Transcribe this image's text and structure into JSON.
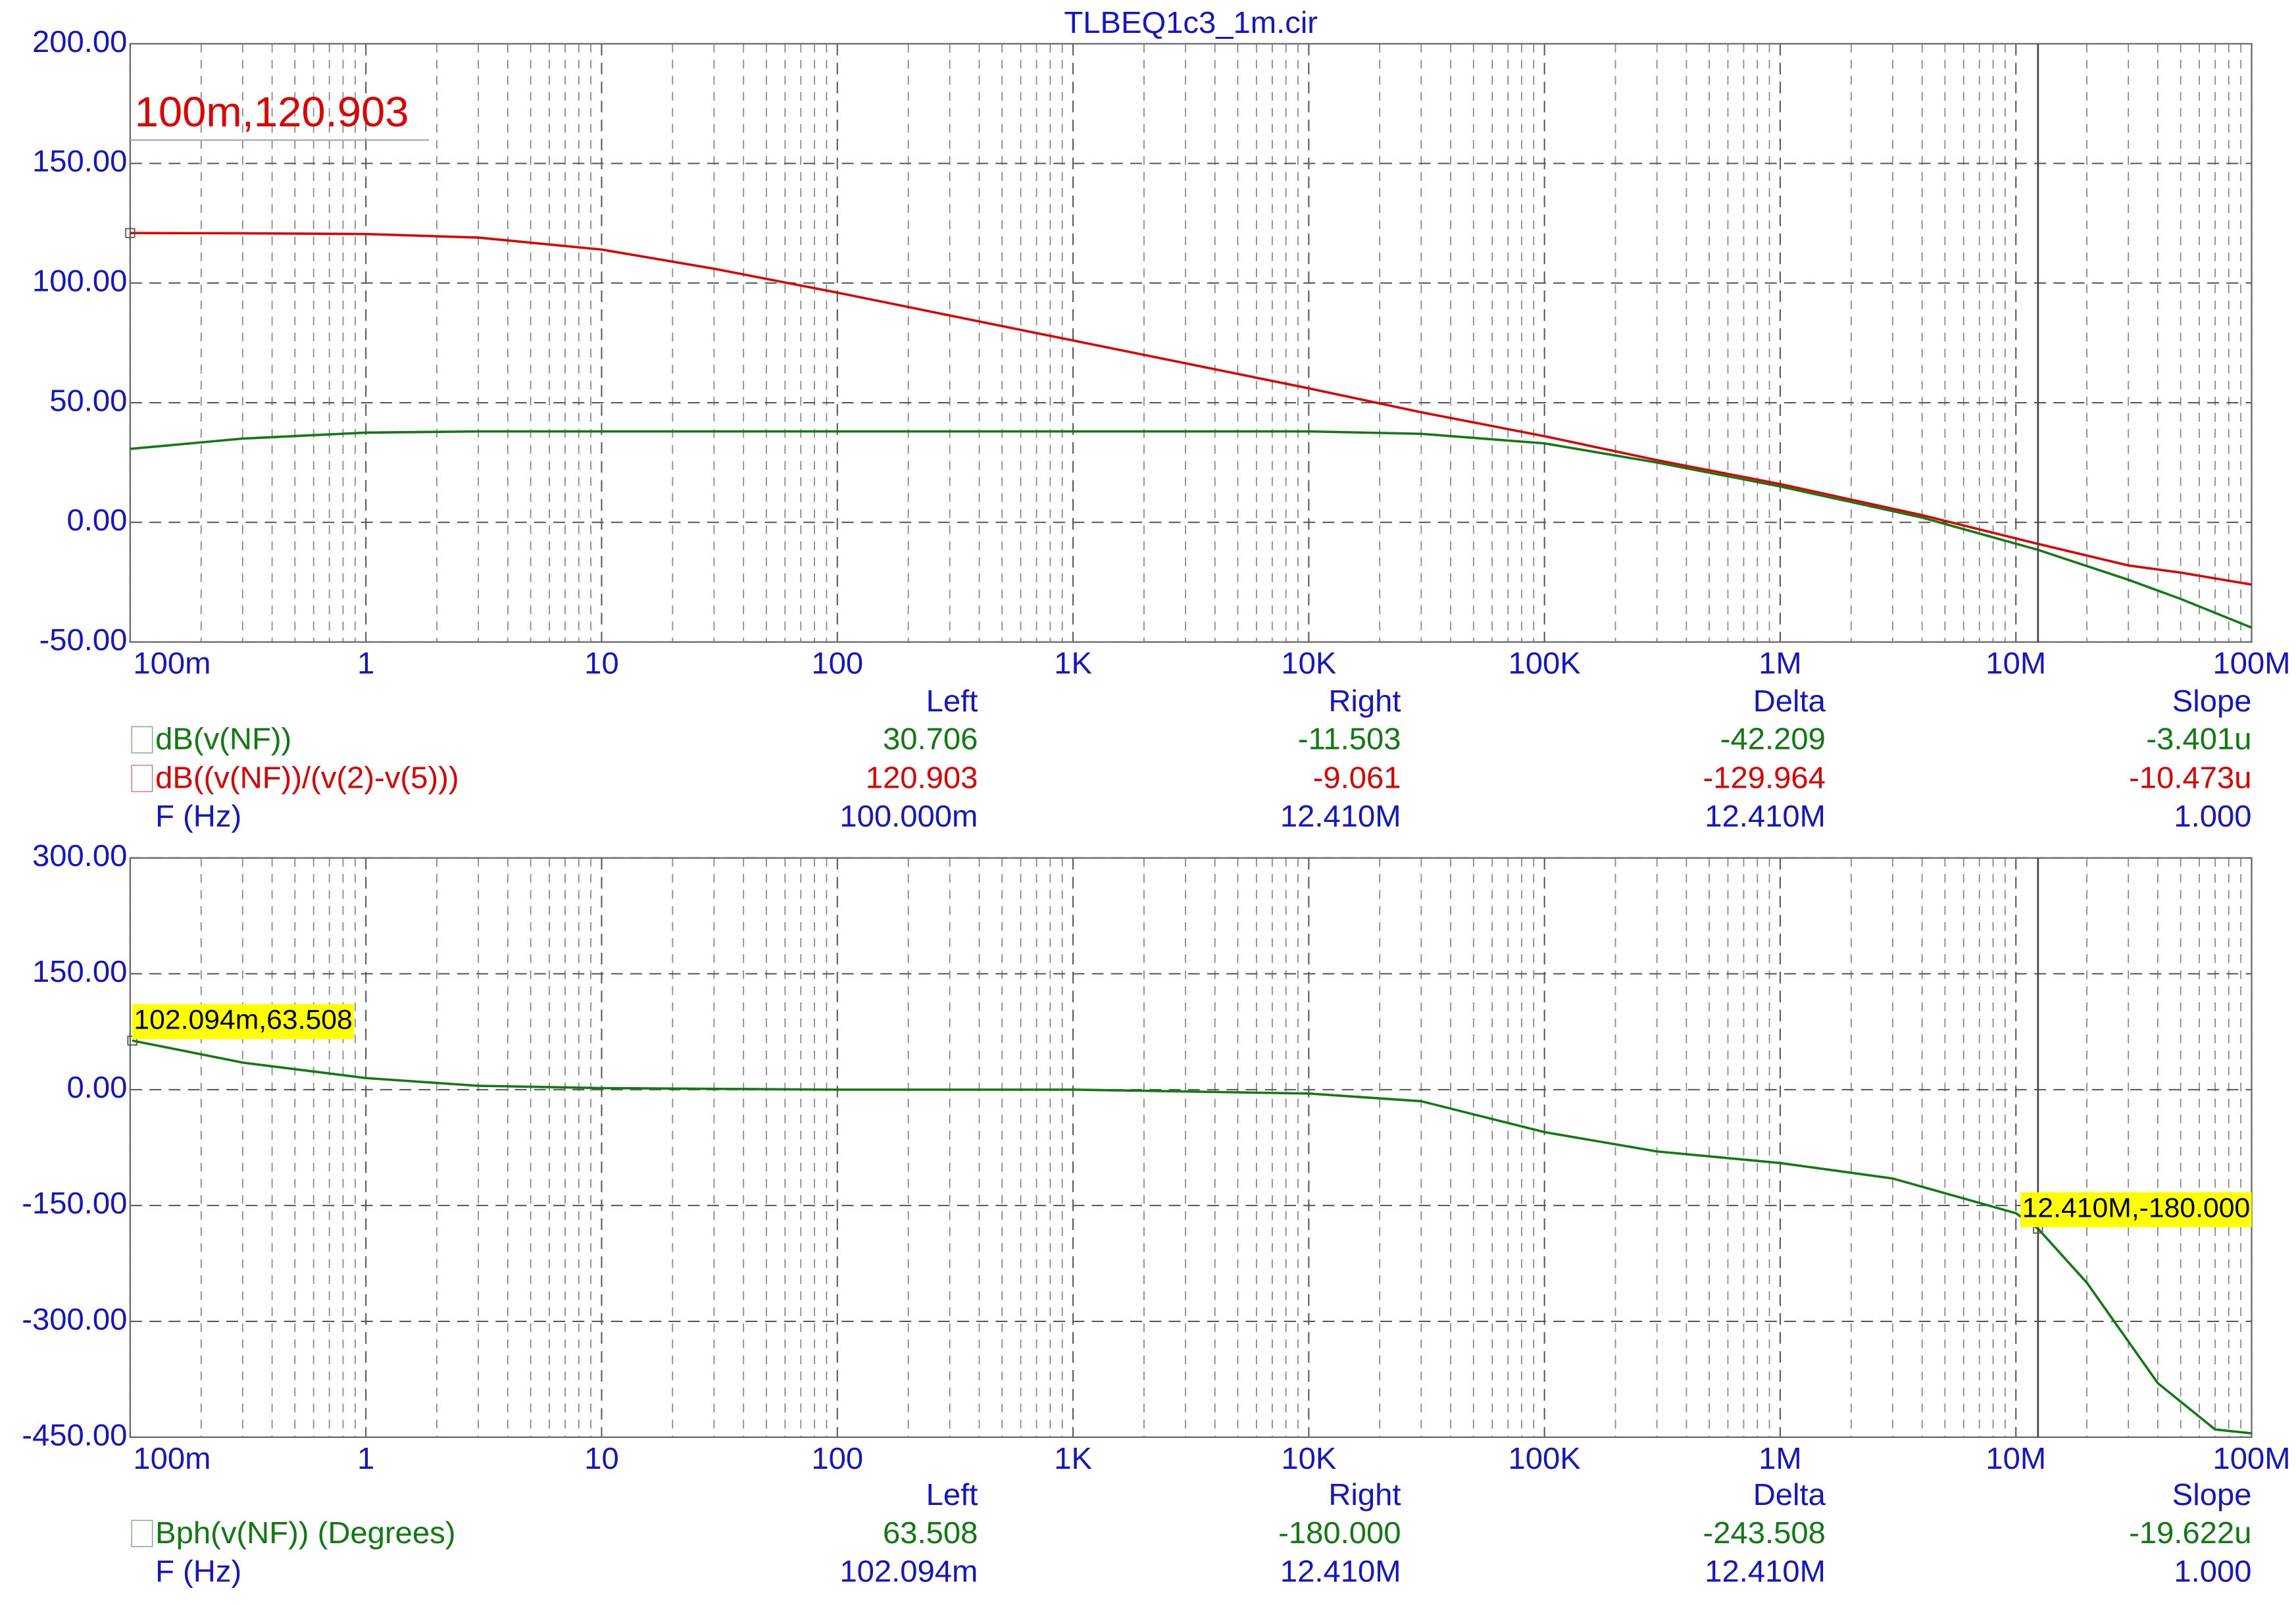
{
  "chart_data": [
    {
      "type": "line",
      "title": "TLBEQ1c3_1m.cir",
      "xscale": "log",
      "grid": true,
      "xlim": [
        0.1,
        100000000
      ],
      "xticks": [
        {
          "value": 0.1,
          "label": "100m"
        },
        1,
        10,
        100,
        {
          "value": 1000,
          "label": "1K"
        },
        {
          "value": 10000,
          "label": "10K"
        },
        {
          "value": 100000,
          "label": "100K"
        },
        {
          "value": 1000000,
          "label": "1M"
        },
        {
          "value": 10000000,
          "label": "10M"
        },
        {
          "value": 100000000,
          "label": "100M"
        }
      ],
      "ylim": [
        -50,
        200
      ],
      "yticks": [
        {
          "value": 200,
          "label": "200.00"
        },
        {
          "value": 150,
          "label": "150.00"
        },
        {
          "value": 100,
          "label": "100.00"
        },
        {
          "value": 50,
          "label": "50.00"
        },
        {
          "value": 0,
          "label": "0.00"
        },
        {
          "value": -50,
          "label": "-50.00"
        }
      ],
      "x": [
        0.1,
        0.3,
        1,
        3,
        10,
        30,
        100,
        1000,
        10000,
        30000,
        100000,
        300000,
        1000000,
        4000000,
        12410000,
        30000000,
        50000000,
        100000000
      ],
      "series": [
        {
          "name": "dB(v(NF))",
          "color": "#0f7a0f",
          "values": [
            30.7,
            35,
            37.5,
            38,
            38,
            38,
            38,
            38,
            38,
            37,
            33,
            25,
            15,
            2,
            -11.5,
            -24,
            -32,
            -44
          ],
          "cursor_values": [
            "30.706",
            "-11.503",
            "-42.209",
            "-3.401u"
          ]
        },
        {
          "name": "dB((v(NF))/(v(2)-v(5)))",
          "color": "#e00000",
          "values": [
            120.9,
            120.8,
            120.5,
            119,
            114,
            106,
            96,
            76,
            56,
            46,
            36,
            26,
            16,
            3,
            -9,
            -18,
            -21,
            -26
          ],
          "cursor_values": [
            "120.903",
            "-9.061",
            "-129.964",
            "-10.473u"
          ]
        }
      ],
      "cursor_x": 12410000,
      "annotations": [
        {
          "x": 0.1,
          "y": 120.903,
          "label": "100m,120.903",
          "color": "#e00000"
        }
      ],
      "cursor_columns": [
        "Left",
        "Right",
        "Delta",
        "Slope"
      ],
      "x_label": "F (Hz)",
      "x_cursor_values": [
        "100.000m",
        "12.410M",
        "12.410M",
        "1.000"
      ]
    },
    {
      "type": "line",
      "xscale": "log",
      "grid": true,
      "xlim": [
        0.1,
        100000000
      ],
      "xticks": [
        {
          "value": 0.1,
          "label": "100m"
        },
        1,
        10,
        100,
        {
          "value": 1000,
          "label": "1K"
        },
        {
          "value": 10000,
          "label": "10K"
        },
        {
          "value": 100000,
          "label": "100K"
        },
        {
          "value": 1000000,
          "label": "1M"
        },
        {
          "value": 10000000,
          "label": "10M"
        },
        {
          "value": 100000000,
          "label": "100M"
        }
      ],
      "ylim": [
        -450,
        300
      ],
      "yticks": [
        {
          "value": 300,
          "label": "300.00"
        },
        {
          "value": 150,
          "label": "150.00"
        },
        {
          "value": 0,
          "label": "0.00"
        },
        {
          "value": -150,
          "label": "-150.00"
        },
        {
          "value": -300,
          "label": "-300.00"
        },
        {
          "value": -450,
          "label": "-450.00"
        }
      ],
      "x": [
        0.102094,
        0.3,
        1,
        3,
        10,
        100,
        1000,
        10000,
        30000,
        100000,
        300000,
        1000000,
        3000000,
        10000000,
        12410000,
        20000000,
        40000000,
        70000000,
        100000000
      ],
      "series": [
        {
          "name": "Bph(v(NF)) (Degrees)",
          "color": "#0f7a0f",
          "values": [
            63.508,
            35,
            15,
            5,
            2,
            0,
            0,
            -5,
            -15,
            -55,
            -80,
            -95,
            -115,
            -160,
            -180,
            -250,
            -380,
            -440,
            -445
          ],
          "cursor_values": [
            "63.508",
            "-180.000",
            "-243.508",
            "-19.622u"
          ]
        }
      ],
      "cursor_x": 12410000,
      "annotations": [
        {
          "x": 0.102094,
          "y": 63.508,
          "label": "102.094m,63.508",
          "background": "#ffff00"
        },
        {
          "x": 12410000,
          "y": -180,
          "label": "12.410M,-180.000",
          "background": "#ffff00"
        }
      ],
      "cursor_columns": [
        "Left",
        "Right",
        "Delta",
        "Slope"
      ],
      "x_label": "F (Hz)",
      "x_cursor_values": [
        "102.094m",
        "12.410M",
        "12.410M",
        "1.000"
      ]
    }
  ]
}
